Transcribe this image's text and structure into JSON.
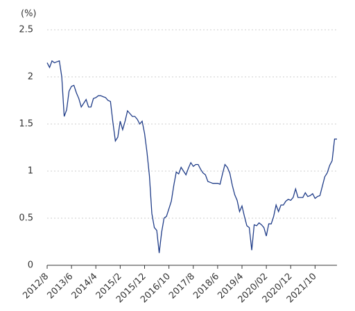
{
  "chart_data": {
    "type": "line",
    "y_unit_label": "(%)",
    "categories": [
      "2012/8",
      null,
      null,
      null,
      null,
      null,
      null,
      null,
      null,
      null,
      "2013/6",
      null,
      null,
      null,
      null,
      null,
      null,
      null,
      null,
      null,
      "2014/4",
      null,
      null,
      null,
      null,
      null,
      null,
      null,
      null,
      null,
      "2015/2",
      null,
      null,
      null,
      null,
      null,
      null,
      null,
      null,
      null,
      "2015/12",
      null,
      null,
      null,
      null,
      null,
      null,
      null,
      null,
      null,
      "2016/10",
      null,
      null,
      null,
      null,
      null,
      null,
      null,
      null,
      null,
      "2017/8",
      null,
      null,
      null,
      null,
      null,
      null,
      null,
      null,
      null,
      "2018/6",
      null,
      null,
      null,
      null,
      null,
      null,
      null,
      null,
      null,
      "2019/4",
      null,
      null,
      null,
      null,
      null,
      null,
      null,
      null,
      null,
      "2020/02",
      null,
      null,
      null,
      null,
      null,
      null,
      null,
      null,
      null,
      "2020/12",
      null,
      null,
      null,
      null,
      null,
      null,
      null,
      null,
      null,
      "2021/10",
      null,
      null,
      null,
      null,
      null,
      null,
      null,
      null,
      null
    ],
    "values": [
      2.15,
      2.1,
      2.17,
      2.15,
      2.16,
      2.17,
      2.0,
      1.58,
      1.65,
      1.85,
      1.9,
      1.91,
      1.83,
      1.77,
      1.68,
      1.72,
      1.76,
      1.68,
      1.68,
      1.77,
      1.78,
      1.8,
      1.8,
      1.79,
      1.78,
      1.75,
      1.74,
      1.52,
      1.32,
      1.36,
      1.53,
      1.44,
      1.53,
      1.64,
      1.61,
      1.58,
      1.58,
      1.55,
      1.5,
      1.53,
      1.4,
      1.2,
      0.95,
      0.55,
      0.4,
      0.37,
      0.13,
      0.35,
      0.5,
      0.52,
      0.6,
      0.68,
      0.85,
      0.99,
      0.97,
      1.04,
      1.0,
      0.96,
      1.03,
      1.09,
      1.05,
      1.07,
      1.07,
      1.02,
      0.98,
      0.96,
      0.89,
      0.88,
      0.87,
      0.87,
      0.87,
      0.86,
      0.97,
      1.07,
      1.04,
      0.98,
      0.85,
      0.75,
      0.69,
      0.57,
      0.63,
      0.52,
      0.42,
      0.4,
      0.16,
      0.43,
      0.42,
      0.45,
      0.43,
      0.4,
      0.31,
      0.44,
      0.44,
      0.52,
      0.64,
      0.57,
      0.64,
      0.64,
      0.68,
      0.7,
      0.69,
      0.72,
      0.81,
      0.72,
      0.72,
      0.72,
      0.77,
      0.73,
      0.74,
      0.76,
      0.71,
      0.73,
      0.74,
      0.84,
      0.94,
      0.98,
      1.06,
      1.11,
      1.34,
      1.34
    ],
    "color": "#1f3c88",
    "ylim": [
      0,
      2.5
    ],
    "yticks": [
      0,
      0.5,
      1,
      1.5,
      2,
      2.5
    ],
    "grid": true
  }
}
